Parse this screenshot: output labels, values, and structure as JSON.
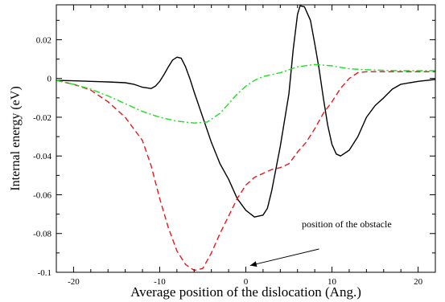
{
  "chart_data": {
    "type": "line",
    "title": "",
    "xlabel": "Average position of the dislocation (Ang.)",
    "ylabel": "Internal energy (eV)",
    "xlim": [
      -22,
      22
    ],
    "ylim": [
      -0.1,
      0.038
    ],
    "x_ticks": [
      -20,
      -10,
      0,
      10,
      20
    ],
    "x_tick_labels": [
      "-20",
      "-10",
      "0",
      "10",
      "20"
    ],
    "y_ticks": [
      -0.1,
      -0.08,
      -0.06,
      -0.04,
      -0.02,
      0,
      0.02
    ],
    "y_tick_labels": [
      "-0.1",
      "-0.08",
      "-0.06",
      "-0.04",
      "-0.02",
      "0",
      "0.02"
    ],
    "grid": false,
    "legend": "none",
    "series": [
      {
        "style": "solid",
        "color": "#000000",
        "points": [
          [
            -22,
            -0.001
          ],
          [
            -20,
            -0.0012
          ],
          [
            -18,
            -0.0015
          ],
          [
            -16,
            -0.0018
          ],
          [
            -14,
            -0.0022
          ],
          [
            -13,
            -0.003
          ],
          [
            -12,
            -0.0045
          ],
          [
            -11,
            -0.0052
          ],
          [
            -10.5,
            -0.004
          ],
          [
            -10,
            -0.0015
          ],
          [
            -9.5,
            0.002
          ],
          [
            -9,
            0.006
          ],
          [
            -8.5,
            0.0095
          ],
          [
            -8,
            0.011
          ],
          [
            -7.5,
            0.0105
          ],
          [
            -7,
            0.006
          ],
          [
            -6.5,
            0.0
          ],
          [
            -6,
            -0.007
          ],
          [
            -5,
            -0.02
          ],
          [
            -4,
            -0.033
          ],
          [
            -3,
            -0.044
          ],
          [
            -2,
            -0.052
          ],
          [
            -1,
            -0.062
          ],
          [
            0,
            -0.068
          ],
          [
            1,
            -0.0715
          ],
          [
            2,
            -0.0705
          ],
          [
            2.5,
            -0.067
          ],
          [
            3,
            -0.058
          ],
          [
            4,
            -0.035
          ],
          [
            5,
            -0.008
          ],
          [
            5.5,
            0.015
          ],
          [
            6,
            0.033
          ],
          [
            6.3,
            0.0375
          ],
          [
            6.8,
            0.037
          ],
          [
            7.5,
            0.03
          ],
          [
            8,
            0.018
          ],
          [
            8.5,
            0.005
          ],
          [
            9,
            -0.01
          ],
          [
            9.5,
            -0.024
          ],
          [
            10,
            -0.034
          ],
          [
            10.5,
            -0.039
          ],
          [
            11,
            -0.04
          ],
          [
            12,
            -0.037
          ],
          [
            13,
            -0.03
          ],
          [
            14,
            -0.02
          ],
          [
            15,
            -0.014
          ],
          [
            16,
            -0.01
          ],
          [
            17,
            -0.0055
          ],
          [
            18,
            -0.003
          ],
          [
            20,
            -0.0015
          ],
          [
            22,
            -0.0005
          ]
        ]
      },
      {
        "style": "dashed",
        "color": "#e31a1c",
        "points": [
          [
            -22,
            -0.001
          ],
          [
            -20,
            -0.003
          ],
          [
            -18,
            -0.006
          ],
          [
            -16,
            -0.012
          ],
          [
            -14,
            -0.02
          ],
          [
            -12,
            -0.032
          ],
          [
            -11,
            -0.045
          ],
          [
            -10,
            -0.062
          ],
          [
            -9,
            -0.077
          ],
          [
            -8,
            -0.089
          ],
          [
            -7,
            -0.096
          ],
          [
            -6,
            -0.099
          ],
          [
            -5,
            -0.098
          ],
          [
            -4,
            -0.09
          ],
          [
            -3,
            -0.08
          ],
          [
            -2,
            -0.071
          ],
          [
            -1,
            -0.062
          ],
          [
            0,
            -0.055
          ],
          [
            1,
            -0.051
          ],
          [
            2,
            -0.049
          ],
          [
            3,
            -0.047
          ],
          [
            4,
            -0.046
          ],
          [
            5,
            -0.044
          ],
          [
            6,
            -0.038
          ],
          [
            7,
            -0.033
          ],
          [
            8,
            -0.026
          ],
          [
            9,
            -0.018
          ],
          [
            10,
            -0.012
          ],
          [
            11,
            -0.005
          ],
          [
            12,
            0.0
          ],
          [
            13,
            0.003
          ],
          [
            14,
            0.0035
          ],
          [
            16,
            0.0035
          ],
          [
            18,
            0.0035
          ],
          [
            20,
            0.0035
          ],
          [
            22,
            0.0035
          ]
        ]
      },
      {
        "style": "dashdot",
        "color": "#22dd22",
        "points": [
          [
            -22,
            -0.001
          ],
          [
            -20,
            -0.003
          ],
          [
            -18,
            -0.0055
          ],
          [
            -16,
            -0.009
          ],
          [
            -14,
            -0.013
          ],
          [
            -12,
            -0.017
          ],
          [
            -10,
            -0.02
          ],
          [
            -8,
            -0.022
          ],
          [
            -6,
            -0.023
          ],
          [
            -4.5,
            -0.0225
          ],
          [
            -3,
            -0.018
          ],
          [
            -2,
            -0.013
          ],
          [
            -1,
            -0.008
          ],
          [
            0,
            -0.004
          ],
          [
            1,
            -0.001
          ],
          [
            2,
            0.001
          ],
          [
            4,
            0.003
          ],
          [
            6,
            0.006
          ],
          [
            8,
            0.0072
          ],
          [
            10,
            0.0065
          ],
          [
            12,
            0.005
          ],
          [
            14,
            0.0045
          ],
          [
            16,
            0.0042
          ],
          [
            18,
            0.004
          ],
          [
            20,
            0.004
          ],
          [
            22,
            0.004
          ]
        ]
      }
    ],
    "annotation": {
      "text": "position of the obstacle",
      "arrow_from": [
        8.5,
        -0.088
      ],
      "arrow_to": [
        0.5,
        -0.0965
      ]
    }
  }
}
